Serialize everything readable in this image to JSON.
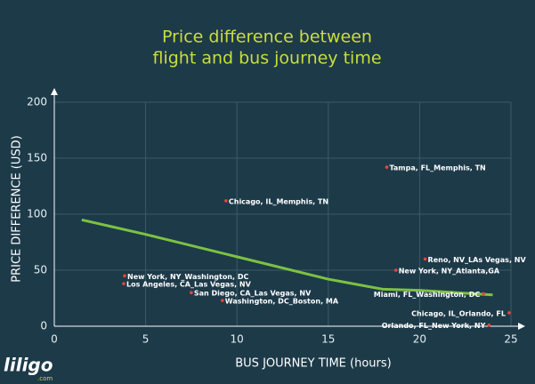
{
  "chart_data": {
    "type": "scatter",
    "title": [
      "Price difference between",
      "flight and bus journey time"
    ],
    "x_label": "BUS JOURNEY TIME  (hours)",
    "y_label": "PRICE DIFFERENCE  (USD)",
    "xlim": [
      0,
      25
    ],
    "xticks": [
      0,
      5,
      10,
      15,
      20,
      25
    ],
    "ylim": [
      0,
      200
    ],
    "yticks": [
      0,
      50,
      100,
      150,
      200
    ],
    "grid": true,
    "color": "#e8453c",
    "x": [
      18.2,
      9.4,
      20.3,
      18.7,
      3.85,
      3.8,
      7.5,
      9.2,
      23.5,
      24.9,
      23.8
    ],
    "values": [
      142,
      112,
      60,
      50,
      45,
      38,
      30,
      23,
      29,
      12,
      1
    ],
    "point_labels": [
      "Tampa, FL_Memphis, TN",
      "Chicago, IL_Memphis, TN",
      "Reno, NV_LAs Vegas, NV",
      "New York, NY_Atlanta,GA",
      "New York, NY_Washington, DC",
      "Los Angeles, CA_Las Vegas, NV",
      "San Diego, CA_Las Vegas, NV",
      "Washington, DC_Boston, MA",
      "Miami, FL_Washington, DC",
      "Chicago, IL_Orlando, FL",
      "Orlando, FL_New York, NY"
    ],
    "trend": {
      "color": "#7dc242",
      "x": [
        1.5,
        5,
        10,
        15,
        18,
        20,
        22,
        24
      ],
      "values": [
        95,
        82,
        62,
        42,
        33,
        32,
        30,
        28
      ]
    },
    "logo": "liligo",
    "logo_sub": ".com"
  }
}
